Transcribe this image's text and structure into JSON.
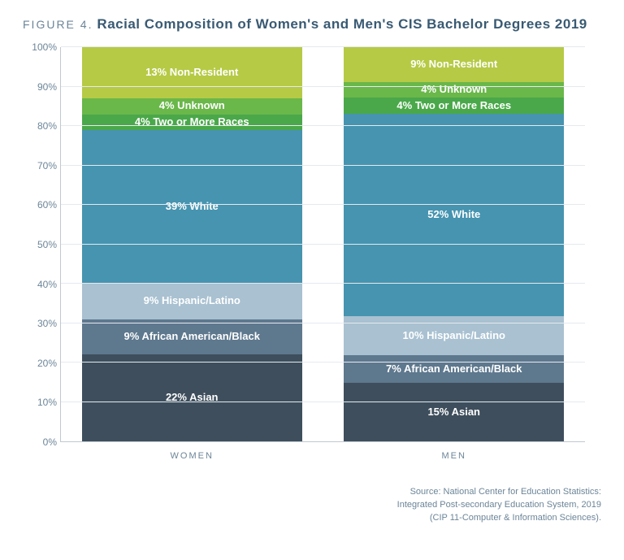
{
  "title": {
    "figure_label": "FIGURE 4.",
    "text": "Racial Composition of Women's and Men's CIS Bachelor Degrees 2019"
  },
  "chart": {
    "type": "stacked-bar-100",
    "ylim": [
      0,
      100
    ],
    "ytick_step": 10,
    "ytick_suffix": "%",
    "grid_color": "#e5eaee",
    "axis_color": "#bfc9d0",
    "background_color": "#ffffff",
    "segment_font_color": "#ffffff",
    "segment_font_size": 13,
    "categories": [
      {
        "key": "women",
        "label": "WOMEN"
      },
      {
        "key": "men",
        "label": "MEN"
      }
    ],
    "segment_order_bottom_to_top": [
      "asian",
      "african_american",
      "hispanic",
      "white",
      "two_or_more",
      "unknown",
      "non_resident"
    ],
    "colors": {
      "asian": "#3e4e5c",
      "african_american": "#5e788e",
      "hispanic": "#a9c1d1",
      "white": "#4694b0",
      "two_or_more": "#4aa84a",
      "unknown": "#6ab74a",
      "non_resident": "#b6ca45"
    },
    "data": {
      "women": {
        "asian": {
          "value": 22,
          "label": "22% Asian"
        },
        "african_american": {
          "value": 9,
          "label": "9% African American/Black"
        },
        "hispanic": {
          "value": 9,
          "label": "9% Hispanic/Latino"
        },
        "white": {
          "value": 39,
          "label": "39% White"
        },
        "two_or_more": {
          "value": 4,
          "label": "4% Two or More Races"
        },
        "unknown": {
          "value": 4,
          "label": "4% Unknown"
        },
        "non_resident": {
          "value": 13,
          "label": "13% Non-Resident"
        }
      },
      "men": {
        "asian": {
          "value": 15,
          "label": "15% Asian"
        },
        "african_american": {
          "value": 7,
          "label": "7% African American/Black"
        },
        "hispanic": {
          "value": 10,
          "label": "10% Hispanic/Latino"
        },
        "white": {
          "value": 52,
          "label": "52% White"
        },
        "two_or_more": {
          "value": 4,
          "label": "4% Two or More Races"
        },
        "unknown": {
          "value": 4,
          "label": "4% Unknown"
        },
        "non_resident": {
          "value": 9,
          "label": "9% Non-Resident"
        }
      }
    }
  },
  "source": {
    "line1": "Source: National Center for Education Statistics:",
    "line2": "Integrated Post-secondary Education System, 2019",
    "line3": "(CIP 11-Computer & Information Sciences)."
  }
}
